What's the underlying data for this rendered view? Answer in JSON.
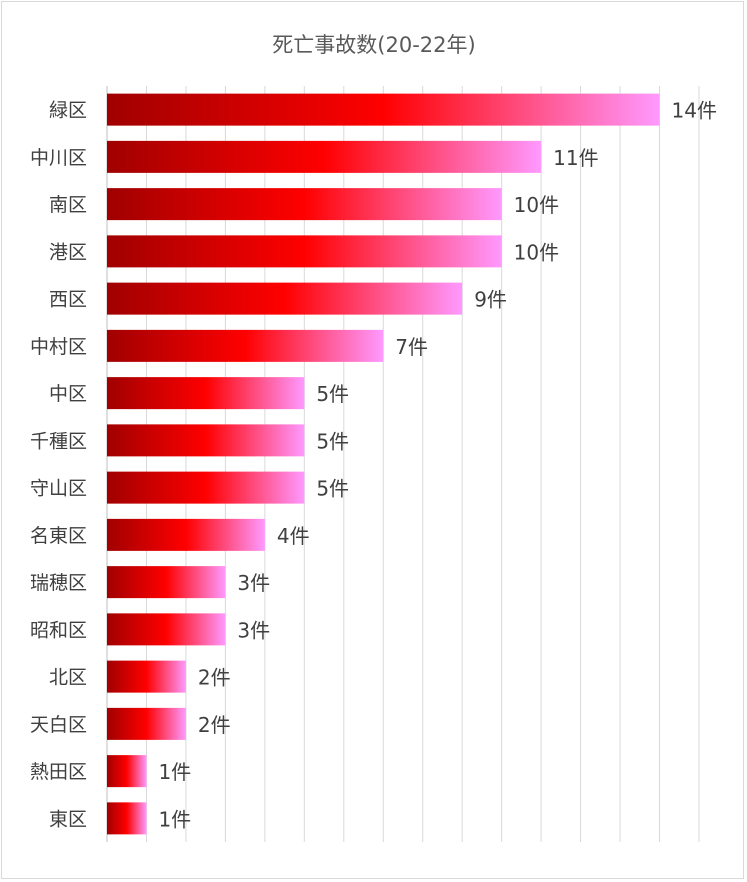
{
  "chart_data": {
    "type": "bar",
    "orientation": "horizontal",
    "title": "死亡事故数(20-22年)",
    "categories": [
      "緑区",
      "中川区",
      "南区",
      "港区",
      "西区",
      "中村区",
      "中区",
      "千種区",
      "守山区",
      "名東区",
      "瑞穂区",
      "昭和区",
      "北区",
      "天白区",
      "熱田区",
      "東区"
    ],
    "values": [
      14,
      11,
      10,
      10,
      9,
      7,
      5,
      5,
      5,
      4,
      3,
      3,
      2,
      2,
      1,
      1
    ],
    "data_labels": [
      "14件",
      "11件",
      "10件",
      "10件",
      "9件",
      "7件",
      "5件",
      "5件",
      "5件",
      "4件",
      "3件",
      "3件",
      "2件",
      "2件",
      "1件",
      "1件"
    ],
    "xlim": [
      0,
      15
    ],
    "grid": true,
    "legend": "none",
    "colors": {
      "gradient_start": "#a00000",
      "gradient_mid": "#ff0000",
      "gradient_end": "#ff99ff",
      "grid": "#d9d9d9",
      "axis": "#bfbfbf"
    }
  }
}
